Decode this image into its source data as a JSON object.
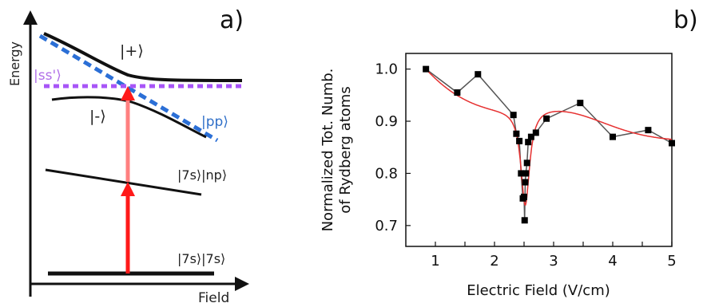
{
  "panel_a": {
    "label": "a)",
    "y_axis_label": "Energy",
    "x_axis_label": "Field",
    "state_plus": "|+⟩",
    "state_minus": "|-⟩",
    "state_ss": "|ss'⟩",
    "state_pp": "|pp⟩",
    "state_7snp": "|7s⟩|np⟩",
    "state_7s7s": "|7s⟩|7s⟩",
    "colors": {
      "ss_line": "#a855f7",
      "pp_line": "#2b6fd6",
      "arrow_lower": "#ff1a1a",
      "arrow_upper": "#ff8080",
      "ss_text": "#b06ee8",
      "pp_text": "#2f6fc8"
    }
  },
  "panel_b": {
    "label": "b)"
  },
  "chart_data": {
    "type": "scatter",
    "xlabel": "Electric Field (V/cm)",
    "ylabel_line1": "Normalized Tot. Numb.",
    "ylabel_line2": "of Rydberg atoms",
    "xlim": [
      0.5,
      5.0
    ],
    "ylim": [
      0.66,
      1.03
    ],
    "xticks": [
      1,
      1.5,
      2,
      2.5,
      3,
      3.5,
      4,
      4.5,
      5
    ],
    "xtick_labels": [
      "1",
      "",
      "2",
      "",
      "3",
      "",
      "4",
      "",
      "5"
    ],
    "yticks": [
      0.7,
      0.8,
      0.9,
      1.0
    ],
    "ytick_labels": [
      "0.7",
      "0.8",
      "0.9",
      "1.0"
    ],
    "series": [
      {
        "style": "markers+line",
        "marker_color": "#000000",
        "line_color": "#555555",
        "x": [
          0.84,
          1.37,
          1.72,
          2.32,
          2.37,
          2.42,
          2.45,
          2.48,
          2.5,
          2.51,
          2.52,
          2.53,
          2.55,
          2.57,
          2.62,
          2.7,
          2.88,
          3.45,
          4.0,
          4.6,
          5.0
        ],
        "y": [
          1.0,
          0.955,
          0.99,
          0.912,
          0.876,
          0.862,
          0.8,
          0.752,
          0.755,
          0.71,
          0.783,
          0.8,
          0.82,
          0.86,
          0.87,
          0.878,
          0.905,
          0.935,
          0.87,
          0.883,
          0.858
        ]
      },
      {
        "style": "line",
        "line_color": "#e63030",
        "fit": "lorentzian_dip",
        "params": {
          "center": 2.52,
          "width": 0.09,
          "depth": 0.2,
          "baseline_start": 1.0,
          "baseline_shape": "smooth"
        }
      }
    ]
  }
}
